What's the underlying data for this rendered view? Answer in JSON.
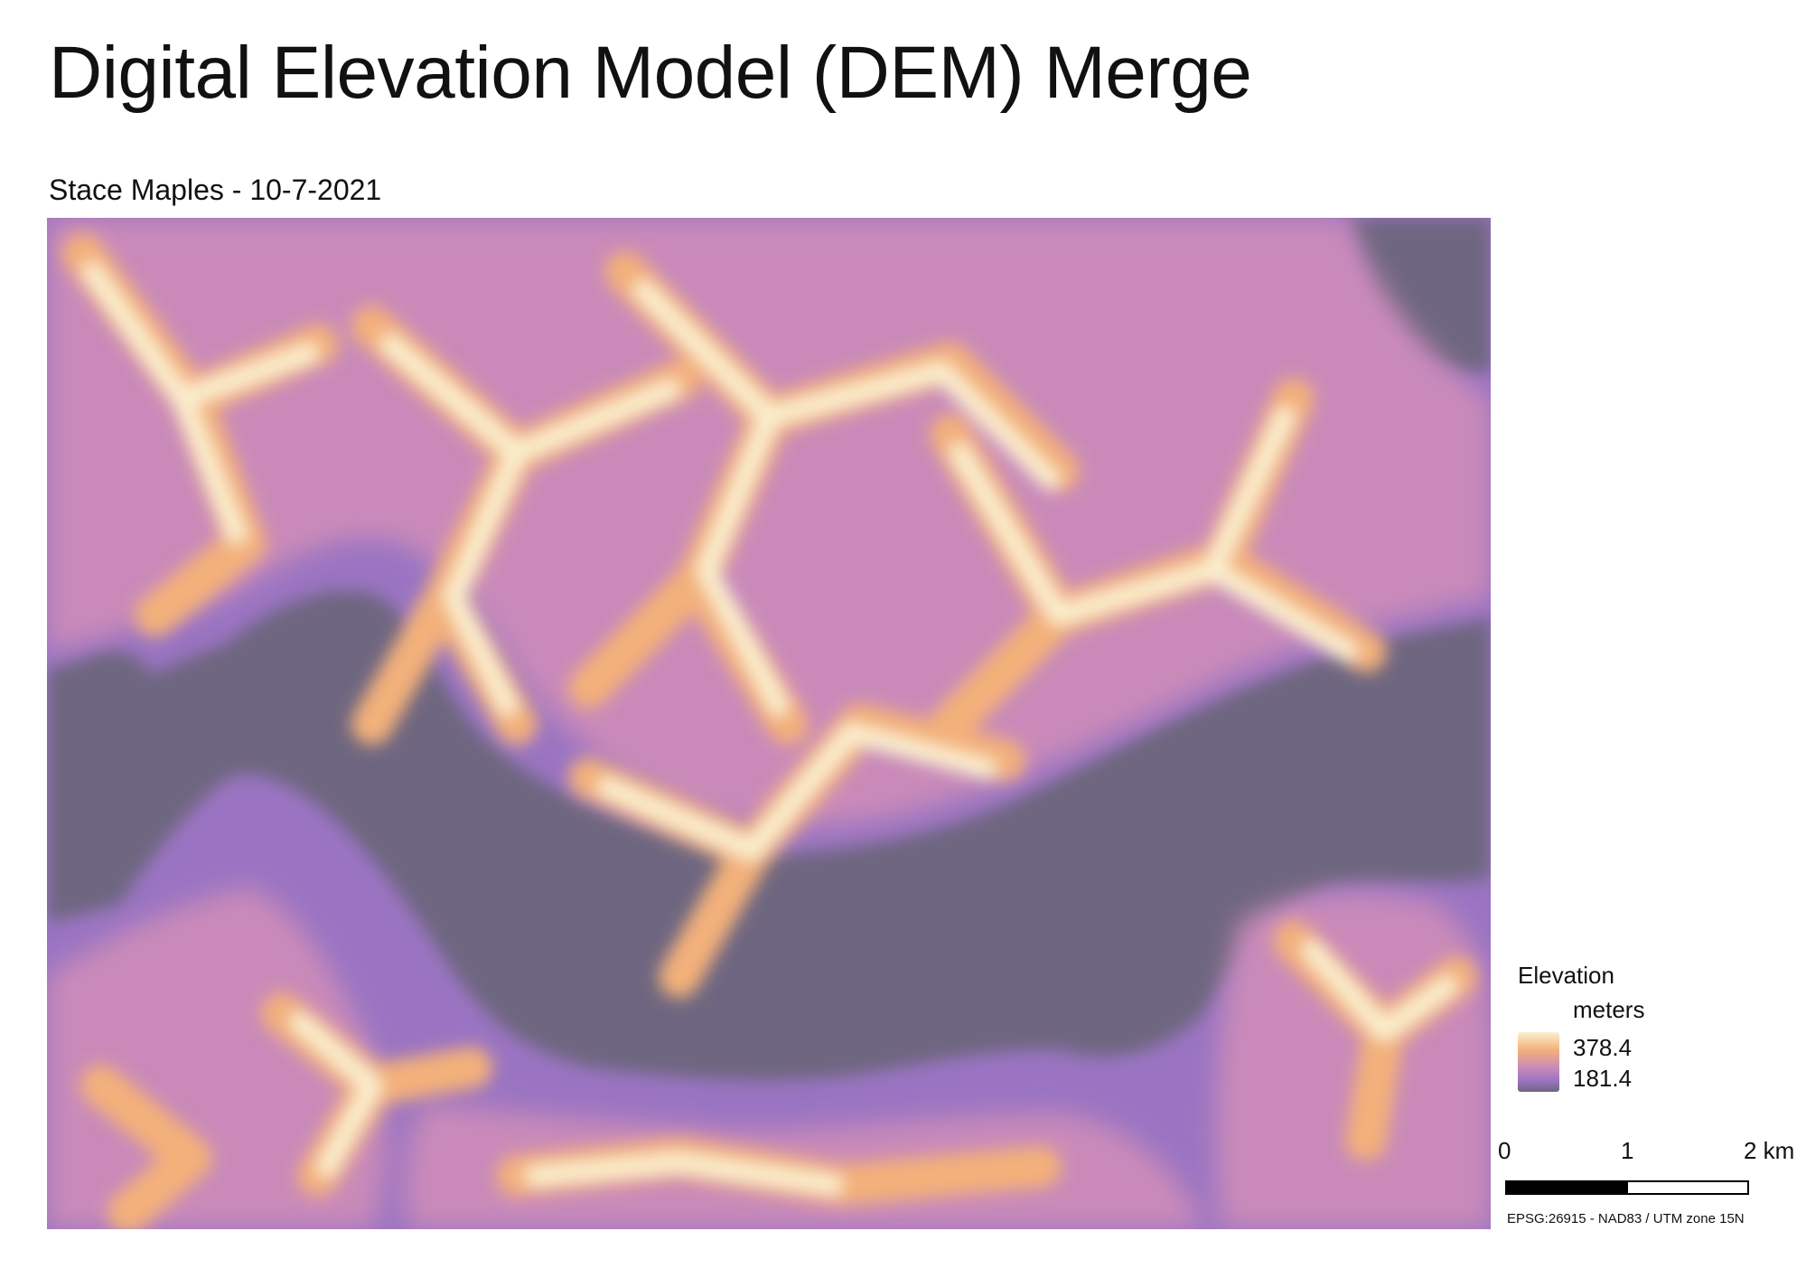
{
  "title": "Digital Elevation Model (DEM) Merge",
  "subtitle": "Stace Maples - 10-7-2021",
  "legend": {
    "title": "Elevation",
    "units": "meters",
    "max_label": "378.4",
    "min_label": "181.4",
    "color_high": "#fbf0cf",
    "color_mid_high": "#f3b07a",
    "color_mid": "#c98ab9",
    "color_mid_low": "#9a74c2",
    "color_low": "#6e6680"
  },
  "scalebar": {
    "labels": [
      "0",
      "1",
      "2 km"
    ]
  },
  "crs": "EPSG:26915 - NAD83 / UTM zone 15N"
}
